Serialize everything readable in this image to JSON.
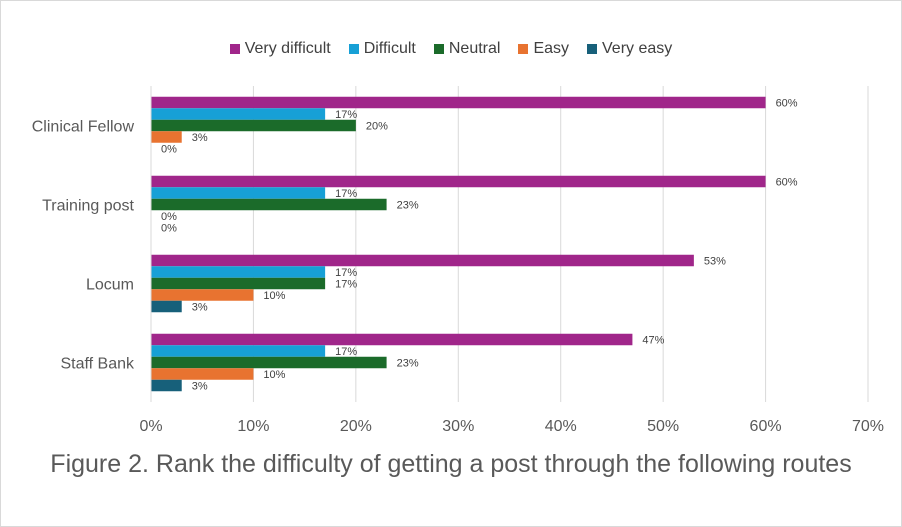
{
  "legend": [
    {
      "label": "Very difficult",
      "color": "#A0268A"
    },
    {
      "label": "Difficult",
      "color": "#17A0D6"
    },
    {
      "label": "Neutral",
      "color": "#1B6B2A"
    },
    {
      "label": "Easy",
      "color": "#E87330"
    },
    {
      "label": "Very easy",
      "color": "#17607A"
    }
  ],
  "caption": "Figure 2. Rank the difficulty of getting a post through the following routes",
  "chart_data": {
    "type": "bar",
    "orientation": "horizontal",
    "categories": [
      "Clinical Fellow",
      "Training post",
      "Locum",
      "Staff Bank"
    ],
    "series": [
      {
        "name": "Very difficult",
        "values": [
          60,
          60,
          53,
          47
        ]
      },
      {
        "name": "Difficult",
        "values": [
          17,
          17,
          17,
          17
        ]
      },
      {
        "name": "Neutral",
        "values": [
          20,
          23,
          17,
          23
        ]
      },
      {
        "name": "Easy",
        "values": [
          3,
          0,
          10,
          10
        ]
      },
      {
        "name": "Very easy",
        "values": [
          0,
          0,
          3,
          3
        ]
      }
    ],
    "xlim": [
      0,
      70
    ],
    "xticks": [
      "0%",
      "10%",
      "20%",
      "30%",
      "40%",
      "50%",
      "60%",
      "70%"
    ],
    "value_suffix": "%",
    "grid": true,
    "legend_position": "top"
  }
}
